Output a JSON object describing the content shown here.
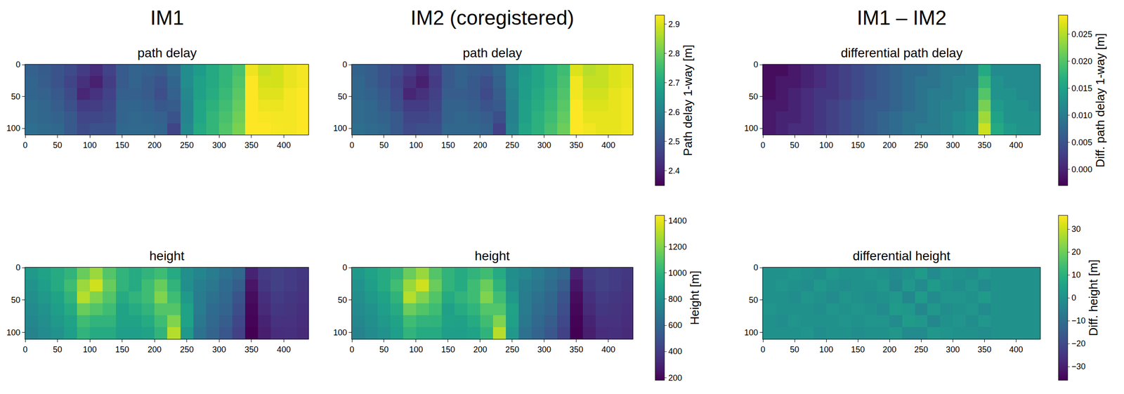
{
  "column_titles": [
    "IM1",
    "IM2 (coregistered)",
    "IM1 – IM2"
  ],
  "chart_data": [
    {
      "type": "heatmap",
      "title": "path delay",
      "color": "Viridis",
      "x": [
        10,
        30,
        50,
        70,
        90,
        110,
        130,
        150,
        170,
        190,
        210,
        230,
        250,
        270,
        290,
        310,
        330,
        350,
        370,
        390,
        410,
        430
      ],
      "y": [
        9,
        27,
        46,
        64,
        83,
        101
      ],
      "z": [
        [
          2.528,
          2.518,
          2.499,
          2.48,
          2.451,
          2.422,
          2.463,
          2.514,
          2.535,
          2.526,
          2.517,
          2.548,
          2.628,
          2.669,
          2.7,
          2.73,
          2.761,
          2.916,
          2.882,
          2.892,
          2.912,
          2.922
        ],
        [
          2.538,
          2.519,
          2.499,
          2.47,
          2.431,
          2.402,
          2.453,
          2.514,
          2.535,
          2.516,
          2.497,
          2.538,
          2.629,
          2.679,
          2.7,
          2.731,
          2.771,
          2.938,
          2.893,
          2.892,
          2.912,
          2.922
        ],
        [
          2.538,
          2.529,
          2.51,
          2.481,
          2.412,
          2.432,
          2.463,
          2.524,
          2.525,
          2.516,
          2.487,
          2.528,
          2.619,
          2.68,
          2.71,
          2.741,
          2.782,
          2.94,
          2.903,
          2.903,
          2.922,
          2.932
        ],
        [
          2.549,
          2.539,
          2.52,
          2.491,
          2.452,
          2.453,
          2.474,
          2.535,
          2.536,
          2.526,
          2.507,
          2.518,
          2.609,
          2.69,
          2.721,
          2.751,
          2.792,
          2.952,
          2.914,
          2.913,
          2.923,
          2.932
        ],
        [
          2.549,
          2.54,
          2.53,
          2.511,
          2.472,
          2.473,
          2.484,
          2.535,
          2.546,
          2.537,
          2.528,
          2.499,
          2.609,
          2.69,
          2.731,
          2.762,
          2.803,
          2.954,
          2.925,
          2.923,
          2.923,
          2.933
        ],
        [
          2.559,
          2.55,
          2.541,
          2.511,
          2.482,
          2.493,
          2.494,
          2.545,
          2.546,
          2.547,
          2.538,
          2.469,
          2.62,
          2.7,
          2.731,
          2.772,
          2.813,
          2.956,
          2.936,
          2.924,
          2.923,
          2.933
        ]
      ],
      "zlim": [
        2.35,
        2.93
      ],
      "xlim": [
        0,
        438
      ],
      "ylim": [
        110,
        0
      ],
      "xticks": [
        0,
        50,
        100,
        150,
        200,
        250,
        300,
        350,
        400
      ],
      "yticks": [
        0,
        50,
        100
      ]
    },
    {
      "type": "heatmap",
      "title": "path delay",
      "color": "Viridis",
      "x": [
        10,
        30,
        50,
        70,
        90,
        110,
        130,
        150,
        170,
        190,
        210,
        230,
        250,
        270,
        290,
        310,
        330,
        350,
        370,
        390,
        410,
        430
      ],
      "y": [
        9,
        27,
        46,
        64,
        83,
        101
      ],
      "z": [
        [
          2.53,
          2.52,
          2.5,
          2.48,
          2.45,
          2.42,
          2.46,
          2.51,
          2.53,
          2.52,
          2.51,
          2.54,
          2.62,
          2.66,
          2.69,
          2.72,
          2.75,
          2.9,
          2.87,
          2.88,
          2.9,
          2.91
        ],
        [
          2.54,
          2.52,
          2.5,
          2.47,
          2.43,
          2.4,
          2.45,
          2.51,
          2.53,
          2.51,
          2.49,
          2.53,
          2.62,
          2.67,
          2.69,
          2.72,
          2.76,
          2.92,
          2.88,
          2.88,
          2.9,
          2.91
        ],
        [
          2.54,
          2.53,
          2.51,
          2.48,
          2.41,
          2.43,
          2.46,
          2.52,
          2.52,
          2.51,
          2.48,
          2.52,
          2.61,
          2.67,
          2.7,
          2.73,
          2.77,
          2.92,
          2.89,
          2.89,
          2.91,
          2.92
        ],
        [
          2.55,
          2.54,
          2.52,
          2.49,
          2.45,
          2.45,
          2.47,
          2.53,
          2.53,
          2.52,
          2.5,
          2.51,
          2.6,
          2.68,
          2.71,
          2.74,
          2.78,
          2.93,
          2.9,
          2.9,
          2.91,
          2.92
        ],
        [
          2.55,
          2.54,
          2.53,
          2.51,
          2.47,
          2.47,
          2.48,
          2.53,
          2.54,
          2.53,
          2.52,
          2.49,
          2.6,
          2.68,
          2.72,
          2.75,
          2.79,
          2.93,
          2.91,
          2.91,
          2.91,
          2.92
        ],
        [
          2.56,
          2.55,
          2.54,
          2.51,
          2.48,
          2.49,
          2.49,
          2.54,
          2.54,
          2.54,
          2.53,
          2.46,
          2.61,
          2.69,
          2.72,
          2.76,
          2.8,
          2.93,
          2.92,
          2.91,
          2.91,
          2.92
        ]
      ],
      "zlim": [
        2.35,
        2.93
      ],
      "colorbar": {
        "title": "Path delay 1-way [m]",
        "ticks": [
          2.4,
          2.5,
          2.6,
          2.7,
          2.8,
          2.9
        ]
      },
      "xlim": [
        0,
        438
      ],
      "ylim": [
        110,
        0
      ],
      "xticks": [
        0,
        50,
        100,
        150,
        200,
        250,
        300,
        350,
        400
      ],
      "yticks": [
        0,
        50,
        100
      ]
    },
    {
      "type": "heatmap",
      "title": "differential path delay",
      "color": "Viridis",
      "x": [
        10,
        30,
        50,
        70,
        90,
        110,
        130,
        150,
        170,
        190,
        210,
        230,
        250,
        270,
        290,
        310,
        330,
        350,
        370,
        390,
        410,
        430
      ],
      "y": [
        9,
        27,
        46,
        64,
        83,
        101
      ],
      "z": [
        [
          -0.002,
          -0.002,
          -0.001,
          0.0,
          0.001,
          0.002,
          0.003,
          0.004,
          0.005,
          0.006,
          0.007,
          0.008,
          0.008,
          0.009,
          0.01,
          0.01,
          0.011,
          0.016,
          0.012,
          0.012,
          0.012,
          0.012
        ],
        [
          -0.002,
          -0.001,
          -0.001,
          0.0,
          0.001,
          0.002,
          0.003,
          0.004,
          0.005,
          0.006,
          0.007,
          0.008,
          0.009,
          0.009,
          0.01,
          0.011,
          0.011,
          0.018,
          0.013,
          0.012,
          0.012,
          0.012
        ],
        [
          -0.002,
          -0.001,
          0.0,
          0.001,
          0.002,
          0.002,
          0.003,
          0.004,
          0.005,
          0.006,
          0.007,
          0.008,
          0.009,
          0.01,
          0.01,
          0.011,
          0.012,
          0.02,
          0.013,
          0.013,
          0.012,
          0.012
        ],
        [
          -0.001,
          -0.001,
          0.0,
          0.001,
          0.002,
          0.003,
          0.004,
          0.005,
          0.006,
          0.006,
          0.007,
          0.008,
          0.009,
          0.01,
          0.011,
          0.011,
          0.012,
          0.022,
          0.014,
          0.013,
          0.013,
          0.012
        ],
        [
          -0.001,
          0.0,
          0.0,
          0.001,
          0.002,
          0.003,
          0.004,
          0.005,
          0.006,
          0.007,
          0.008,
          0.009,
          0.009,
          0.01,
          0.011,
          0.012,
          0.013,
          0.024,
          0.015,
          0.013,
          0.013,
          0.013
        ],
        [
          -0.001,
          0.0,
          0.001,
          0.001,
          0.002,
          0.003,
          0.004,
          0.005,
          0.006,
          0.007,
          0.008,
          0.009,
          0.01,
          0.01,
          0.011,
          0.012,
          0.013,
          0.026,
          0.016,
          0.014,
          0.013,
          0.013
        ]
      ],
      "zlim": [
        -0.003,
        0.0285
      ],
      "colorbar": {
        "title": "Diff. path delay 1-way [m]",
        "ticks": [
          {
            "value": 0,
            "label": "0.000"
          },
          0.005,
          {
            "value": 0.01,
            "label": "0.010"
          },
          0.015,
          {
            "value": 0.02,
            "label": "0.020"
          },
          0.025
        ]
      },
      "xlim": [
        0,
        438
      ],
      "ylim": [
        110,
        0
      ],
      "xticks": [
        0,
        50,
        100,
        150,
        200,
        250,
        300,
        350,
        400
      ],
      "yticks": [
        0,
        50,
        100
      ]
    },
    {
      "type": "heatmap",
      "title": "height",
      "color": "Viridis",
      "x": [
        10,
        30,
        50,
        70,
        90,
        110,
        130,
        150,
        170,
        190,
        210,
        230,
        250,
        270,
        290,
        310,
        330,
        350,
        370,
        390,
        410,
        430
      ],
      "y": [
        9,
        27,
        46,
        64,
        83,
        101
      ],
      "z": [
        [
          850,
          900,
          950,
          1000,
          1150,
          1250,
          1100,
          1000,
          950,
          1000,
          1050,
          950,
          800,
          750,
          700,
          650,
          600,
          300,
          400,
          420,
          400,
          380
        ],
        [
          820,
          880,
          950,
          1050,
          1250,
          1350,
          1150,
          1000,
          950,
          1050,
          1150,
          1000,
          800,
          720,
          680,
          620,
          550,
          250,
          380,
          420,
          400,
          370
        ],
        [
          800,
          850,
          900,
          1000,
          1300,
          1200,
          1100,
          950,
          1000,
          1050,
          1200,
          1050,
          850,
          700,
          650,
          600,
          500,
          220,
          350,
          400,
          380,
          360
        ],
        [
          780,
          820,
          880,
          950,
          1150,
          1100,
          1050,
          900,
          950,
          1000,
          1100,
          1100,
          900,
          700,
          620,
          580,
          480,
          200,
          330,
          380,
          370,
          350
        ],
        [
          760,
          800,
          850,
          900,
          1050,
          1000,
          1000,
          900,
          900,
          950,
          1050,
          1200,
          900,
          680,
          600,
          550,
          450,
          190,
          300,
          360,
          360,
          340
        ],
        [
          740,
          780,
          820,
          880,
          1000,
          950,
          950,
          880,
          880,
          900,
          1000,
          1300,
          850,
          650,
          580,
          520,
          420,
          180,
          280,
          340,
          350,
          330
        ]
      ],
      "zlim": [
        180,
        1440
      ],
      "xlim": [
        0,
        438
      ],
      "ylim": [
        110,
        0
      ],
      "xticks": [
        0,
        50,
        100,
        150,
        200,
        250,
        300,
        350,
        400
      ],
      "yticks": [
        0,
        50,
        100
      ]
    },
    {
      "type": "heatmap",
      "title": "height",
      "color": "Viridis",
      "x": [
        10,
        30,
        50,
        70,
        90,
        110,
        130,
        150,
        170,
        190,
        210,
        230,
        250,
        270,
        290,
        310,
        330,
        350,
        370,
        390,
        410,
        430
      ],
      "y": [
        9,
        27,
        46,
        64,
        83,
        101
      ],
      "z": [
        [
          850,
          900,
          949,
          1000,
          1151,
          1248,
          1100,
          1000,
          949,
          1000,
          1052,
          950,
          797,
          752,
          699,
          650,
          601,
          298,
          400,
          420,
          400,
          380
        ],
        [
          820,
          879,
          950,
          1051,
          1248,
          1350,
          1151,
          1000,
          950,
          1048,
          1153,
          998,
          802,
          717,
          680,
          621,
          549,
          252,
          380,
          420,
          400,
          370
        ],
        [
          800,
          850,
          901,
          999,
          1300,
          1202,
          1099,
          950,
          1001,
          1050,
          1198,
          1053,
          847,
          702,
          649,
          599,
          500,
          217,
          350,
          400,
          380,
          360
        ],
        [
          779,
          820,
          880,
          950,
          1151,
          1099,
          1050,
          899,
          950,
          1002,
          1097,
          1098,
          903,
          698,
          621,
          580,
          479,
          202,
          330,
          380,
          370,
          350
        ],
        [
          760,
          801,
          849,
          900,
          1050,
          1000,
          999,
          900,
          899,
          949,
          1052,
          1197,
          898,
          683,
          600,
          549,
          451,
          188,
          300,
          360,
          360,
          340
        ],
        [
          740,
          780,
          820,
          879,
          1001,
          950,
          950,
          881,
          880,
          900,
          998,
          1302,
          852,
          648,
          579,
          520,
          420,
          181,
          280,
          340,
          350,
          330
        ]
      ],
      "zlim": [
        180,
        1440
      ],
      "colorbar": {
        "title": "Height [m]",
        "ticks": [
          200,
          400,
          600,
          800,
          1000,
          1200,
          1400
        ]
      },
      "xlim": [
        0,
        438
      ],
      "ylim": [
        110,
        0
      ],
      "xticks": [
        0,
        50,
        100,
        150,
        200,
        250,
        300,
        350,
        400
      ],
      "yticks": [
        0,
        50,
        100
      ]
    },
    {
      "type": "heatmap",
      "title": "differential height",
      "color": "Viridis",
      "x": [
        10,
        30,
        50,
        70,
        90,
        110,
        130,
        150,
        170,
        190,
        210,
        230,
        250,
        270,
        290,
        310,
        330,
        350,
        370,
        390,
        410,
        430
      ],
      "y": [
        9,
        27,
        46,
        64,
        83,
        101
      ],
      "z": [
        [
          0,
          0,
          1,
          0,
          -1,
          2,
          0,
          0,
          1,
          0,
          -2,
          0,
          3,
          -2,
          1,
          0,
          -1,
          2,
          0,
          0,
          0,
          0
        ],
        [
          0,
          1,
          0,
          -1,
          2,
          0,
          -1,
          0,
          0,
          2,
          -3,
          2,
          -2,
          3,
          0,
          -1,
          1,
          -2,
          0,
          0,
          0,
          0
        ],
        [
          0,
          0,
          -1,
          1,
          0,
          -2,
          1,
          0,
          -1,
          0,
          2,
          -3,
          3,
          -2,
          1,
          1,
          0,
          3,
          0,
          0,
          0,
          0
        ],
        [
          1,
          0,
          0,
          0,
          -1,
          1,
          0,
          1,
          0,
          -2,
          3,
          2,
          -3,
          2,
          -1,
          0,
          1,
          -2,
          0,
          0,
          0,
          0
        ],
        [
          0,
          -1,
          1,
          0,
          0,
          0,
          1,
          0,
          1,
          1,
          -2,
          3,
          2,
          -3,
          0,
          1,
          -1,
          2,
          0,
          0,
          0,
          0
        ],
        [
          0,
          0,
          0,
          1,
          -1,
          0,
          0,
          -1,
          0,
          0,
          2,
          -2,
          -2,
          2,
          1,
          0,
          0,
          -1,
          0,
          0,
          0,
          0
        ]
      ],
      "zlim": [
        -36,
        36
      ],
      "colorbar": {
        "title": "Diff. height [m]",
        "ticks": [
          {
            "value": -30,
            "label": "−30"
          },
          {
            "value": -20,
            "label": "−20"
          },
          {
            "value": -10,
            "label": "−10"
          },
          0,
          10,
          20,
          30
        ]
      },
      "xlim": [
        0,
        438
      ],
      "ylim": [
        110,
        0
      ],
      "xticks": [
        0,
        50,
        100,
        150,
        200,
        250,
        300,
        350,
        400
      ],
      "yticks": [
        0,
        50,
        100
      ]
    }
  ]
}
